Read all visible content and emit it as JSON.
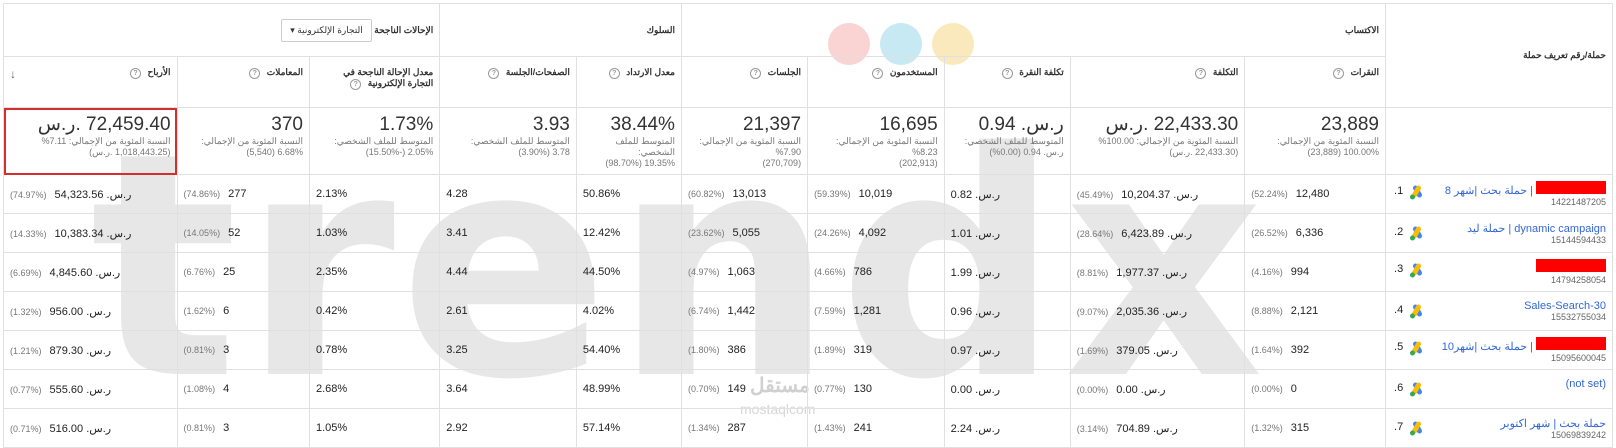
{
  "header_groups": {
    "dimension_label": "حملة/رقم تعريف حملة",
    "acquisition": "الاكتساب",
    "behavior": "السلوك",
    "conversions": "الإحالات الناجحة",
    "conversion_dropdown": "التجارة الإلكترونية"
  },
  "columns": {
    "clicks": "النقرات",
    "cost": "التكلفة",
    "cpc": "تكلفة النقرة",
    "users": "المستخدمون",
    "sessions": "الجلسات",
    "bounce": "معدل الارتداد",
    "pages_session": "الصفحات/الجلسة",
    "ecom_rate": "معدل الإحالة الناجحة في التجارة الإلكترونية",
    "transactions": "المعاملات",
    "revenue": "الأرباح"
  },
  "totals": {
    "clicks": {
      "big": "23,889",
      "line1": "النسبة المئوية من الإجمالي:",
      "line2": "100.00% (23,889)"
    },
    "cost": {
      "big": "22,433.30 .ر.س",
      "line1": "النسبة المئوية من الإجمالي: 100.00%",
      "line2": "(22,433.30 .ر.س)"
    },
    "cpc": {
      "big": "ر.س. 0.94",
      "line1": "المتوسط للملف الشخصي:",
      "line2": "ر.س. 0.94 (0.00%)"
    },
    "users": {
      "big": "16,695",
      "line1": "النسبة المئوية من الإجمالي: 8.23%",
      "line2": "(202,913)"
    },
    "sessions": {
      "big": "21,397",
      "line1": "النسبة المئوية من الإجمالي: 7.90%",
      "line2": "(270,709)"
    },
    "bounce": {
      "big": "38.44%",
      "line1": "المتوسط للملف الشخصي:",
      "line2": "19.35% (98.70%)"
    },
    "pages_session": {
      "big": "3.93",
      "line1": "المتوسط للملف الشخصي:",
      "line2": "3.78 (3.90%)"
    },
    "ecom_rate": {
      "big": "1.73%",
      "line1": "المتوسط للملف الشخصي:",
      "line2": "2.05% (-15.50%)"
    },
    "transactions": {
      "big": "370",
      "line1": "النسبة المئوية من الإجمالي:",
      "line2": "6.68% (5,540)"
    },
    "revenue": {
      "big": "72,459.40 .ر.س",
      "line1": "النسبة المئوية من الإجمالي: 7.11%",
      "line2": "(1,018,443.25 .ر.س)"
    }
  },
  "rows": [
    {
      "idx": "1.",
      "name": "| حملة بحث |شهر 8",
      "redacted": true,
      "id": "14221487205",
      "clicks": "12,480",
      "clicks_pct": "(52.24%)",
      "cost": "10,204.37 .ر.س",
      "cost_pct": "(45.49%)",
      "cpc": "ر.س. 0.82",
      "users": "10,019",
      "users_pct": "(59.39%)",
      "sessions": "13,013",
      "sessions_pct": "(60.82%)",
      "bounce": "50.86%",
      "pages": "4.28",
      "ecom": "2.13%",
      "trans": "277",
      "trans_pct": "(74.86%)",
      "revenue": "54,323.56 .ر.س",
      "revenue_pct": "(74.97%)"
    },
    {
      "idx": "2.",
      "name": "dynamic campaign | حملة ليد",
      "redacted": false,
      "id": "15144594433",
      "clicks": "6,336",
      "clicks_pct": "(26.52%)",
      "cost": "6,423.89 .ر.س",
      "cost_pct": "(28.64%)",
      "cpc": "ر.س. 1.01",
      "users": "4,092",
      "users_pct": "(24.26%)",
      "sessions": "5,055",
      "sessions_pct": "(23.62%)",
      "bounce": "12.42%",
      "pages": "3.41",
      "ecom": "1.03%",
      "trans": "52",
      "trans_pct": "(14.05%)",
      "revenue": "10,383.34 .ر.س",
      "revenue_pct": "(14.33%)"
    },
    {
      "idx": "3.",
      "name": "",
      "redacted": true,
      "id": "14794258054",
      "clicks": "994",
      "clicks_pct": "(4.16%)",
      "cost": "1,977.37 .ر.س",
      "cost_pct": "(8.81%)",
      "cpc": "ر.س. 1.99",
      "users": "786",
      "users_pct": "(4.66%)",
      "sessions": "1,063",
      "sessions_pct": "(4.97%)",
      "bounce": "44.50%",
      "pages": "4.44",
      "ecom": "2.35%",
      "trans": "25",
      "trans_pct": "(6.76%)",
      "revenue": "4,845.60 .ر.س",
      "revenue_pct": "(6.69%)"
    },
    {
      "idx": "4.",
      "name": "Sales-Search-30",
      "redacted": false,
      "id": "15532755034",
      "clicks": "2,121",
      "clicks_pct": "(8.88%)",
      "cost": "2,035.36 .ر.س",
      "cost_pct": "(9.07%)",
      "cpc": "ر.س. 0.96",
      "users": "1,281",
      "users_pct": "(7.59%)",
      "sessions": "1,442",
      "sessions_pct": "(6.74%)",
      "bounce": "4.02%",
      "pages": "2.61",
      "ecom": "0.42%",
      "trans": "6",
      "trans_pct": "(1.62%)",
      "revenue": "956.00 .ر.س",
      "revenue_pct": "(1.32%)"
    },
    {
      "idx": "5.",
      "name": "| حملة بحث |شهر10",
      "redacted": true,
      "id": "15095600045",
      "clicks": "392",
      "clicks_pct": "(1.64%)",
      "cost": "379.05 .ر.س",
      "cost_pct": "(1.69%)",
      "cpc": "ر.س. 0.97",
      "users": "319",
      "users_pct": "(1.89%)",
      "sessions": "386",
      "sessions_pct": "(1.80%)",
      "bounce": "54.40%",
      "pages": "3.25",
      "ecom": "0.78%",
      "trans": "3",
      "trans_pct": "(0.81%)",
      "revenue": "879.30 .ر.س",
      "revenue_pct": "(1.21%)"
    },
    {
      "idx": "6.",
      "name": "(not set)",
      "redacted": false,
      "id": "",
      "clicks": "0",
      "clicks_pct": "(0.00%)",
      "cost": "0.00 .ر.س",
      "cost_pct": "(0.00%)",
      "cpc": "ر.س. 0.00",
      "users": "130",
      "users_pct": "(0.77%)",
      "sessions": "149",
      "sessions_pct": "(0.70%)",
      "bounce": "48.99%",
      "pages": "3.64",
      "ecom": "2.68%",
      "trans": "4",
      "trans_pct": "(1.08%)",
      "revenue": "555.60 .ر.س",
      "revenue_pct": "(0.77%)"
    },
    {
      "idx": "7.",
      "name": "حملة بحث | شهر اكتوبر",
      "redacted": false,
      "id": "15069839242",
      "clicks": "315",
      "clicks_pct": "(1.32%)",
      "cost": "704.89 .ر.س",
      "cost_pct": "(3.14%)",
      "cpc": "ر.س. 2.24",
      "users": "241",
      "users_pct": "(1.43%)",
      "sessions": "287",
      "sessions_pct": "(1.34%)",
      "bounce": "57.14%",
      "pages": "2.92",
      "ecom": "1.05%",
      "trans": "3",
      "trans_pct": "(0.81%)",
      "revenue": "516.00 .ر.س",
      "revenue_pct": "(0.71%)"
    }
  ],
  "watermark": {
    "logo_text": "trendx",
    "brand_ar": "مستقل",
    "brand_en": "mostaqlcom"
  },
  "colors": {
    "accent": "#3367d6",
    "highlight": "#d32f2f",
    "redact": "#ff0000"
  }
}
